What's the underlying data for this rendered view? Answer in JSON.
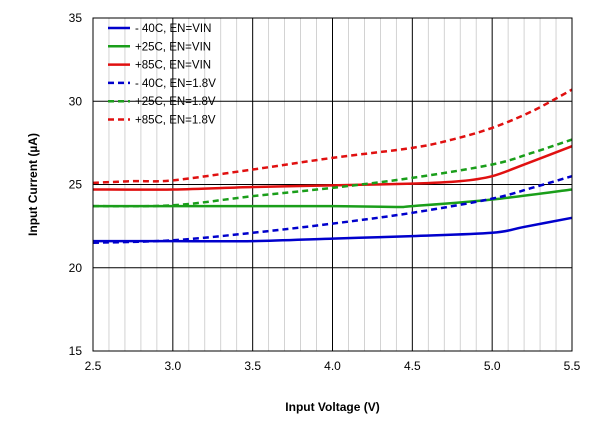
{
  "chart_data": {
    "type": "line",
    "xlabel": "Input  Voltage (V)",
    "ylabel": "Input Current (µA)",
    "xlim": [
      2.5,
      5.5
    ],
    "ylim": [
      15,
      35
    ],
    "xticks": [
      2.5,
      3.0,
      3.5,
      4.0,
      4.5,
      5.0,
      5.5
    ],
    "xtick_labels": [
      "2.5",
      "3.0",
      "3.5",
      "4.0",
      "4.5",
      "5.0",
      "5.5"
    ],
    "yticks": [
      15,
      20,
      25,
      30,
      35
    ],
    "ytick_labels": [
      "15",
      "20",
      "25",
      "30",
      "35"
    ],
    "grid": {
      "major": true,
      "minor_vertical": true
    },
    "legend_position": "top-left",
    "series": [
      {
        "name": "- 40C, EN=VIN",
        "color": "#0000cc",
        "style": "solid",
        "x": [
          2.5,
          3.0,
          3.5,
          4.0,
          4.5,
          5.0,
          5.2,
          5.5
        ],
        "y": [
          21.6,
          21.6,
          21.6,
          21.75,
          21.9,
          22.1,
          22.45,
          23.0
        ]
      },
      {
        "name": "+25C, EN=VIN",
        "color": "#1a9e1a",
        "style": "solid",
        "x": [
          2.5,
          3.0,
          3.5,
          4.0,
          4.4,
          4.5,
          5.0,
          5.5
        ],
        "y": [
          23.7,
          23.7,
          23.7,
          23.7,
          23.65,
          23.7,
          24.1,
          24.7
        ]
      },
      {
        "name": "+85C, EN=VIN",
        "color": "#e01010",
        "style": "solid",
        "x": [
          2.5,
          3.0,
          3.5,
          4.0,
          4.5,
          4.8,
          5.0,
          5.2,
          5.5
        ],
        "y": [
          24.7,
          24.7,
          24.85,
          24.95,
          25.05,
          25.2,
          25.5,
          26.2,
          27.3
        ]
      },
      {
        "name": "- 40C, EN=1.8V",
        "color": "#0000cc",
        "style": "dashed",
        "x": [
          2.5,
          3.0,
          3.5,
          4.0,
          4.5,
          5.0,
          5.25,
          5.5
        ],
        "y": [
          21.5,
          21.65,
          22.1,
          22.65,
          23.3,
          24.15,
          24.8,
          25.5
        ]
      },
      {
        "name": "+25C, EN=1.8V",
        "color": "#1a9e1a",
        "style": "dashed",
        "x": [
          2.5,
          3.0,
          3.5,
          4.0,
          4.5,
          5.0,
          5.25,
          5.5
        ],
        "y": [
          23.7,
          23.75,
          24.3,
          24.8,
          25.4,
          26.2,
          26.9,
          27.7
        ]
      },
      {
        "name": "+85C, EN=1.8V",
        "color": "#e01010",
        "style": "dashed",
        "x": [
          2.5,
          2.75,
          3.0,
          3.5,
          4.0,
          4.5,
          4.75,
          5.0,
          5.25,
          5.5
        ],
        "y": [
          25.1,
          25.2,
          25.25,
          25.9,
          26.6,
          27.2,
          27.7,
          28.4,
          29.4,
          30.7
        ]
      }
    ]
  }
}
